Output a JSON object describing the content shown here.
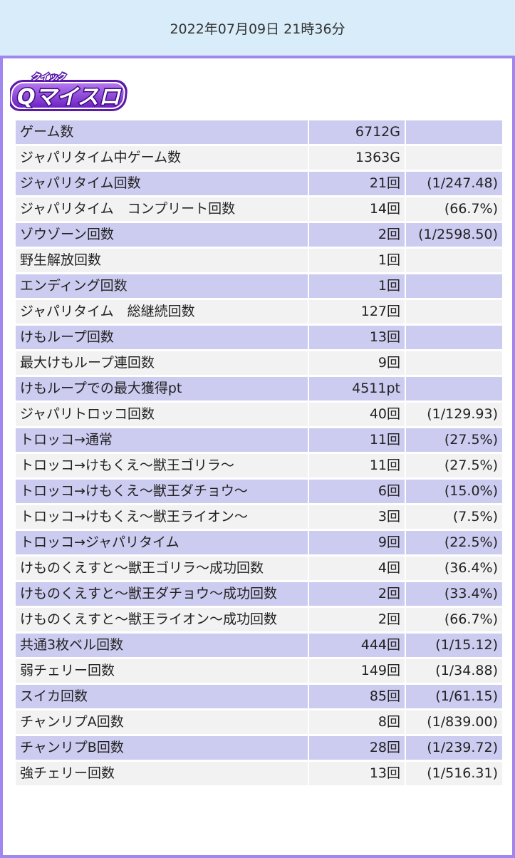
{
  "header": {
    "datetime": "2022年07月09日 21時36分"
  },
  "logo": {
    "small_text": "クイック",
    "main_text": "Qマイスロ",
    "brand_colors": [
      "#5b1aa8",
      "#a055e8",
      "#ffffff"
    ]
  },
  "colors": {
    "panel_border": "#9f86f0",
    "row_odd": "#cccbf0",
    "row_even": "#f2f2f2",
    "header_bg": "#d8ecf9"
  },
  "rows": [
    {
      "name": "ゲーム数",
      "value": "6712G",
      "ratio": ""
    },
    {
      "name": "ジャパリタイム中ゲーム数",
      "value": "1363G",
      "ratio": ""
    },
    {
      "name": "ジャパリタイム回数",
      "value": "21回",
      "ratio": "(1/247.48)"
    },
    {
      "name": "ジャパリタイム　コンプリート回数",
      "value": "14回",
      "ratio": "(66.7%)"
    },
    {
      "name": "ゾウゾーン回数",
      "value": "2回",
      "ratio": "(1/2598.50)"
    },
    {
      "name": "野生解放回数",
      "value": "1回",
      "ratio": ""
    },
    {
      "name": "エンディング回数",
      "value": "1回",
      "ratio": ""
    },
    {
      "name": "ジャパリタイム　総継続回数",
      "value": "127回",
      "ratio": ""
    },
    {
      "name": "けもループ回数",
      "value": "13回",
      "ratio": ""
    },
    {
      "name": "最大けもループ連回数",
      "value": "9回",
      "ratio": ""
    },
    {
      "name": "けもループでの最大獲得pt",
      "value": "4511pt",
      "ratio": ""
    },
    {
      "name": "ジャパリトロッコ回数",
      "value": "40回",
      "ratio": "(1/129.93)"
    },
    {
      "name": "トロッコ→通常",
      "value": "11回",
      "ratio": "(27.5%)"
    },
    {
      "name": "トロッコ→けもくえ～獣王ゴリラ～",
      "value": "11回",
      "ratio": "(27.5%)"
    },
    {
      "name": "トロッコ→けもくえ～獣王ダチョウ～",
      "value": "6回",
      "ratio": "(15.0%)"
    },
    {
      "name": "トロッコ→けもくえ～獣王ライオン～",
      "value": "3回",
      "ratio": "(7.5%)"
    },
    {
      "name": "トロッコ→ジャパリタイム",
      "value": "9回",
      "ratio": "(22.5%)"
    },
    {
      "name": "けものくえすと～獣王ゴリラ～成功回数",
      "value": "4回",
      "ratio": "(36.4%)"
    },
    {
      "name": "けものくえすと～獣王ダチョウ～成功回数",
      "value": "2回",
      "ratio": "(33.4%)"
    },
    {
      "name": "けものくえすと～獣王ライオン～成功回数",
      "value": "2回",
      "ratio": "(66.7%)"
    },
    {
      "name": "共通3枚ベル回数",
      "value": "444回",
      "ratio": "(1/15.12)"
    },
    {
      "name": "弱チェリー回数",
      "value": "149回",
      "ratio": "(1/34.88)"
    },
    {
      "name": "スイカ回数",
      "value": "85回",
      "ratio": "(1/61.15)"
    },
    {
      "name": "チャンリプA回数",
      "value": "8回",
      "ratio": "(1/839.00)"
    },
    {
      "name": "チャンリプB回数",
      "value": "28回",
      "ratio": "(1/239.72)"
    },
    {
      "name": "強チェリー回数",
      "value": "13回",
      "ratio": "(1/516.31)"
    }
  ]
}
